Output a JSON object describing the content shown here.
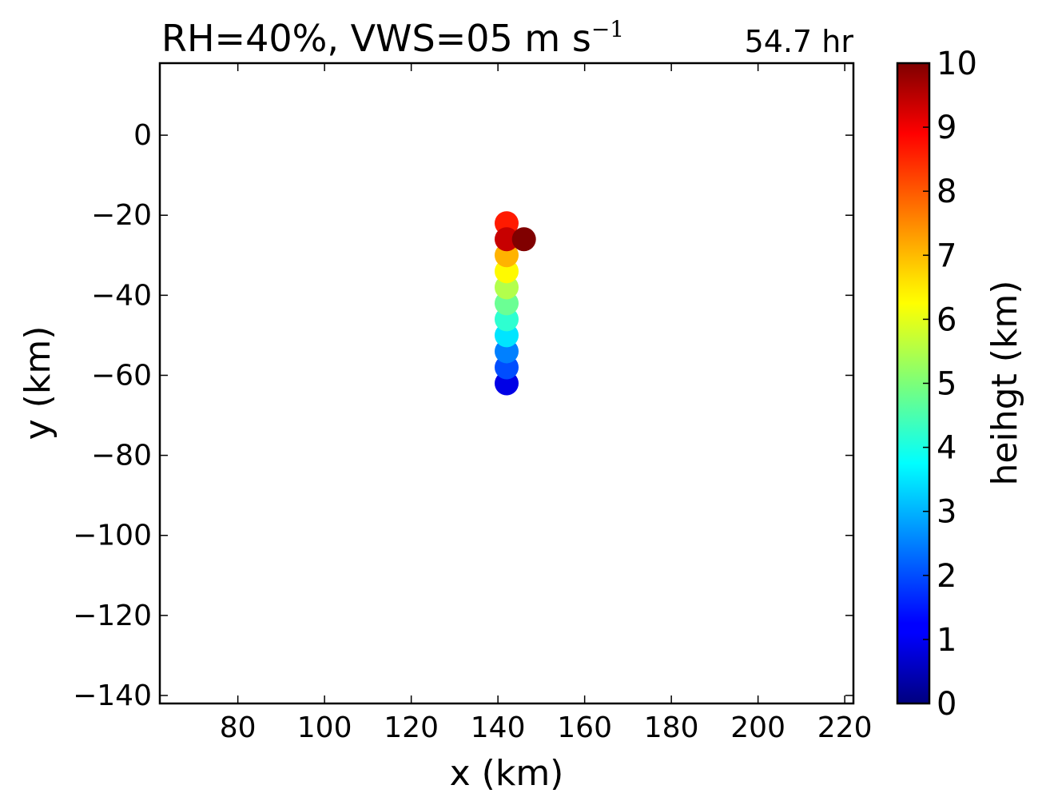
{
  "chart_data": {
    "type": "scatter",
    "title_main": "RH=40%, VWS=05 m s",
    "title_exponent": "−1",
    "time_label": "54.7 hr",
    "time_label_color": "#0000ff",
    "xlabel": "x (km)",
    "ylabel": "y (km)",
    "xlim": [
      62,
      222
    ],
    "ylim": [
      -142,
      18
    ],
    "xticks": [
      80,
      100,
      120,
      140,
      160,
      180,
      200,
      220
    ],
    "yticks": [
      0,
      -20,
      -40,
      -60,
      -80,
      -100,
      -120,
      -140
    ],
    "xtick_labels": [
      "80",
      "100",
      "120",
      "140",
      "160",
      "180",
      "200",
      "220"
    ],
    "ytick_labels": [
      "0",
      "−20",
      "−40",
      "−60",
      "−80",
      "−100",
      "−120",
      "−140"
    ],
    "grid": false,
    "colormap": "jet",
    "colorbar": {
      "label": "heihgt (km)",
      "range": [
        0,
        10
      ],
      "ticks": [
        0,
        1,
        2,
        3,
        4,
        5,
        6,
        7,
        8,
        9,
        10
      ],
      "tick_labels": [
        "0",
        "1",
        "2",
        "3",
        "4",
        "5",
        "6",
        "7",
        "8",
        "9",
        "10"
      ]
    },
    "points": [
      {
        "x": 142,
        "y": -62,
        "height": 1.0
      },
      {
        "x": 142,
        "y": -58,
        "height": 2.0
      },
      {
        "x": 142,
        "y": -54,
        "height": 2.5
      },
      {
        "x": 142,
        "y": -50,
        "height": 3.5
      },
      {
        "x": 142,
        "y": -46,
        "height": 4.2
      },
      {
        "x": 142,
        "y": -42,
        "height": 4.8
      },
      {
        "x": 142,
        "y": -38,
        "height": 5.5
      },
      {
        "x": 142,
        "y": -34,
        "height": 6.3
      },
      {
        "x": 142,
        "y": -30,
        "height": 7.0
      },
      {
        "x": 142,
        "y": -22,
        "height": 8.5
      },
      {
        "x": 142,
        "y": -26,
        "height": 9.3
      },
      {
        "x": 146,
        "y": -26,
        "height": 10.0
      }
    ]
  }
}
